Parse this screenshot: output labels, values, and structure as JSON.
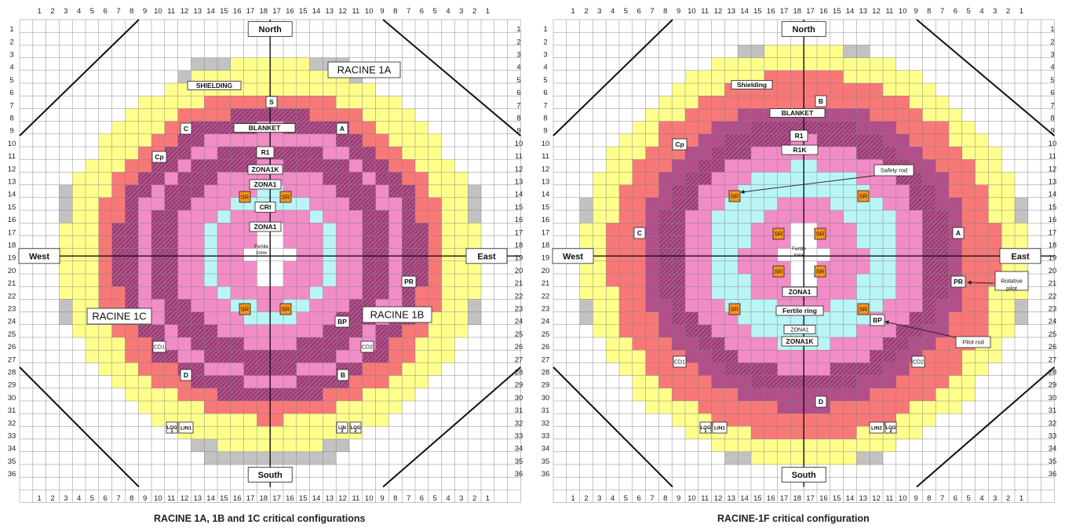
{
  "colors": {
    "shielding": "#c2c2c2",
    "blanket": "#ffff8c",
    "reflector": "#f87878",
    "zona1k": "#b24f8a",
    "zona1": "#f28cc6",
    "cri": "#b9f5f5",
    "grid_line": "#7f7f7f",
    "label_bg": "#ffffff",
    "rod": "#f7941d"
  },
  "grid": {
    "col_labels": [
      "1",
      "2",
      "3",
      "4",
      "5",
      "6",
      "7",
      "8",
      "9",
      "10",
      "11",
      "12",
      "13",
      "14",
      "15",
      "16",
      "17",
      "18",
      "17",
      "16",
      "15",
      "14",
      "13",
      "12",
      "11",
      "10",
      "9",
      "8",
      "7",
      "6",
      "5",
      "4",
      "3",
      "2",
      "1"
    ],
    "row_labels": [
      "1",
      "2",
      "3",
      "4",
      "5",
      "6",
      "7",
      "8",
      "9",
      "10",
      "11",
      "12",
      "13",
      "14",
      "15",
      "16",
      "17",
      "18",
      "19",
      "20",
      "21",
      "22",
      "23",
      "24",
      "25",
      "26",
      "27",
      "28",
      "29",
      "30",
      "31",
      "32",
      "33",
      "34",
      "35",
      "36"
    ]
  },
  "panels": [
    {
      "caption": "RACINE 1A, 1B and 1C critical configurations",
      "labels": {
        "north": "North",
        "south": "South",
        "west": "West",
        "east": "East",
        "shielding": "SHIELDING",
        "blanket": "BLANKET",
        "r1": "R1",
        "zona1k": "ZONA1K",
        "zona1_upper": "ZONA1",
        "cri": "CRI",
        "zona1_inner": "ZONA1",
        "fertile_line1": "Fertile",
        "fertile_line2": "zone",
        "racine_1a": "RACINE 1A",
        "racine_1b": "RACINE 1B",
        "racine_1c": "RACINE 1C",
        "s": "S",
        "c": "C",
        "a": "A",
        "cp": "Cp",
        "pr": "PR",
        "bp": "BP",
        "d": "D",
        "b": "B",
        "cd1": "CD1",
        "cd2": "CD2",
        "sr": "SR",
        "log": "LOG",
        "lin": "LIN",
        "num1": "1",
        "num2": "2",
        "lin1": "LIN1"
      }
    },
    {
      "caption": "RACINE-1F critical configuration",
      "labels": {
        "north": "North",
        "south": "South",
        "west": "West",
        "east": "East",
        "shielding": "Shielding",
        "blanket": "BLANKET",
        "b": "B",
        "r1": "R1",
        "r1k": "R1K",
        "cp": "Cp",
        "c": "C",
        "a": "A",
        "pr": "PR",
        "bp": "BP",
        "sr": "SR",
        "fertile_line1": "Fertile",
        "fertile_line2": "zone",
        "zona1": "ZONA1",
        "fertile_ring": "Fertile ring",
        "zona1_lower": "ZONA1",
        "zona1k": "ZONA1K",
        "cd1": "CD1",
        "cd2": "CD2",
        "d": "D",
        "safety_rod": "Safety rod",
        "rotative_line1": "Rotative",
        "rotative_line2": "pilot",
        "pilot_rod": "Pilot rod",
        "log": "LOG",
        "num1": "1",
        "num2": "2",
        "lin1": "LIN1",
        "lin2": "LIN2"
      }
    }
  ]
}
